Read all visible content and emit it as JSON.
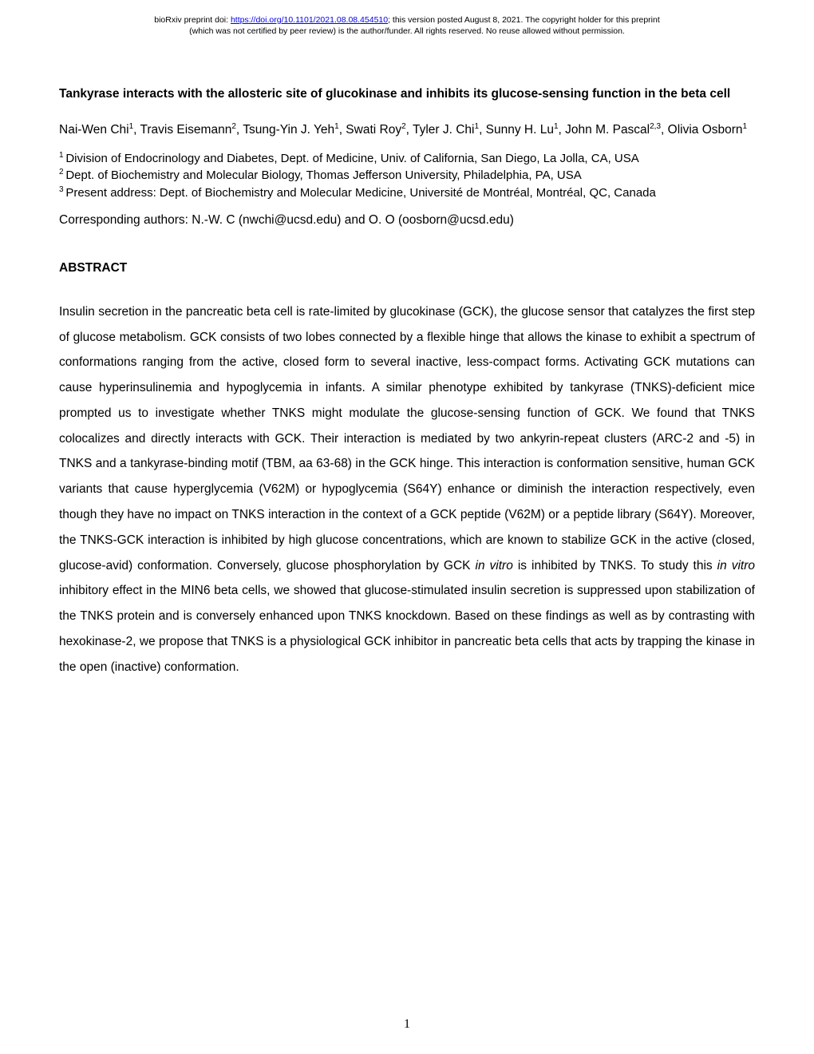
{
  "preprint": {
    "line1_prefix": "bioRxiv preprint doi: ",
    "doi_url": "https://doi.org/10.1101/2021.08.08.454510",
    "line1_suffix": "; this version posted August 8, 2021. The copyright holder for this preprint",
    "line2": "(which was not certified by peer review) is the author/funder. All rights reserved. No reuse allowed without permission."
  },
  "title": "Tankyrase interacts with the allosteric site of glucokinase and inhibits its glucose-sensing function in the beta cell",
  "authors": {
    "a1": "Nai-Wen Chi",
    "s1": "1",
    "a2": ", Travis Eisemann",
    "s2": "2",
    "a3": ", Tsung-Yin J. Yeh",
    "s3": "1",
    "a4": ", Swati Roy",
    "s4": "2",
    "a5": ", Tyler J. Chi",
    "s5": "1",
    "a6": ", Sunny H. Lu",
    "s6": "1",
    "a7": ", John M. Pascal",
    "s7": "2,3",
    "a8": ", Olivia Osborn",
    "s8": "1"
  },
  "affiliations": {
    "n1": "1 ",
    "t1": "Division of Endocrinology and Diabetes, Dept. of Medicine, Univ. of California, San Diego, La Jolla, CA, USA",
    "n2": "2 ",
    "t2": "Dept. of Biochemistry and Molecular Biology, Thomas Jefferson University, Philadelphia, PA, USA",
    "n3": "3 ",
    "t3": "Present address: Dept. of Biochemistry and Molecular Medicine, Université de Montréal, Montréal, QC, Canada"
  },
  "corresponding": "Corresponding authors: N.-W. C (nwchi@ucsd.edu) and O. O (oosborn@ucsd.edu)",
  "abstract_heading": "ABSTRACT",
  "abstract": {
    "p1": "Insulin secretion in the pancreatic beta cell is rate-limited by glucokinase (GCK), the glucose sensor that catalyzes the first step of glucose metabolism.  GCK consists of two lobes connected by a flexible hinge that allows the kinase to exhibit a spectrum of conformations ranging from the active, closed form to several inactive, less-compact forms.  Activating GCK mutations can cause hyperinsulinemia and hypoglycemia in infants.  A similar phenotype exhibited by tankyrase (TNKS)-deficient mice prompted us to investigate whether TNKS might modulate the glucose-sensing function of GCK.  We found that TNKS colocalizes and directly interacts with GCK.  Their interaction is mediated by two ankyrin-repeat clusters (ARC-2 and -5) in TNKS and a tankyrase-binding motif (TBM, aa 63-68) in the GCK hinge.  This interaction is conformation sensitive, human GCK variants that cause hyperglycemia (V62M) or hypoglycemia (S64Y) enhance or diminish the interaction respectively, even though they have no impact on TNKS interaction in the context of a GCK peptide (V62M) or a peptide library (S64Y).  Moreover, the TNKS-GCK interaction is inhibited by high glucose concentrations, which are known to stabilize GCK in the active (closed, glucose-avid) conformation.  Conversely, glucose phosphorylation by GCK ",
    "i1": "in vitro",
    "p2": " is inhibited by TNKS.  To study this ",
    "i2": "in vitro",
    "p3": " inhibitory effect in the MIN6 beta cells, we showed that glucose-stimulated insulin secretion is suppressed upon stabilization of the TNKS protein and is conversely enhanced upon TNKS knockdown.  Based on these findings as well as by contrasting with hexokinase-2, we propose that TNKS is a physiological GCK inhibitor in pancreatic beta cells that acts by trapping the kinase in the open (inactive) conformation."
  },
  "page_number": "1",
  "colors": {
    "background": "#ffffff",
    "text": "#000000",
    "link": "#0000ee"
  }
}
